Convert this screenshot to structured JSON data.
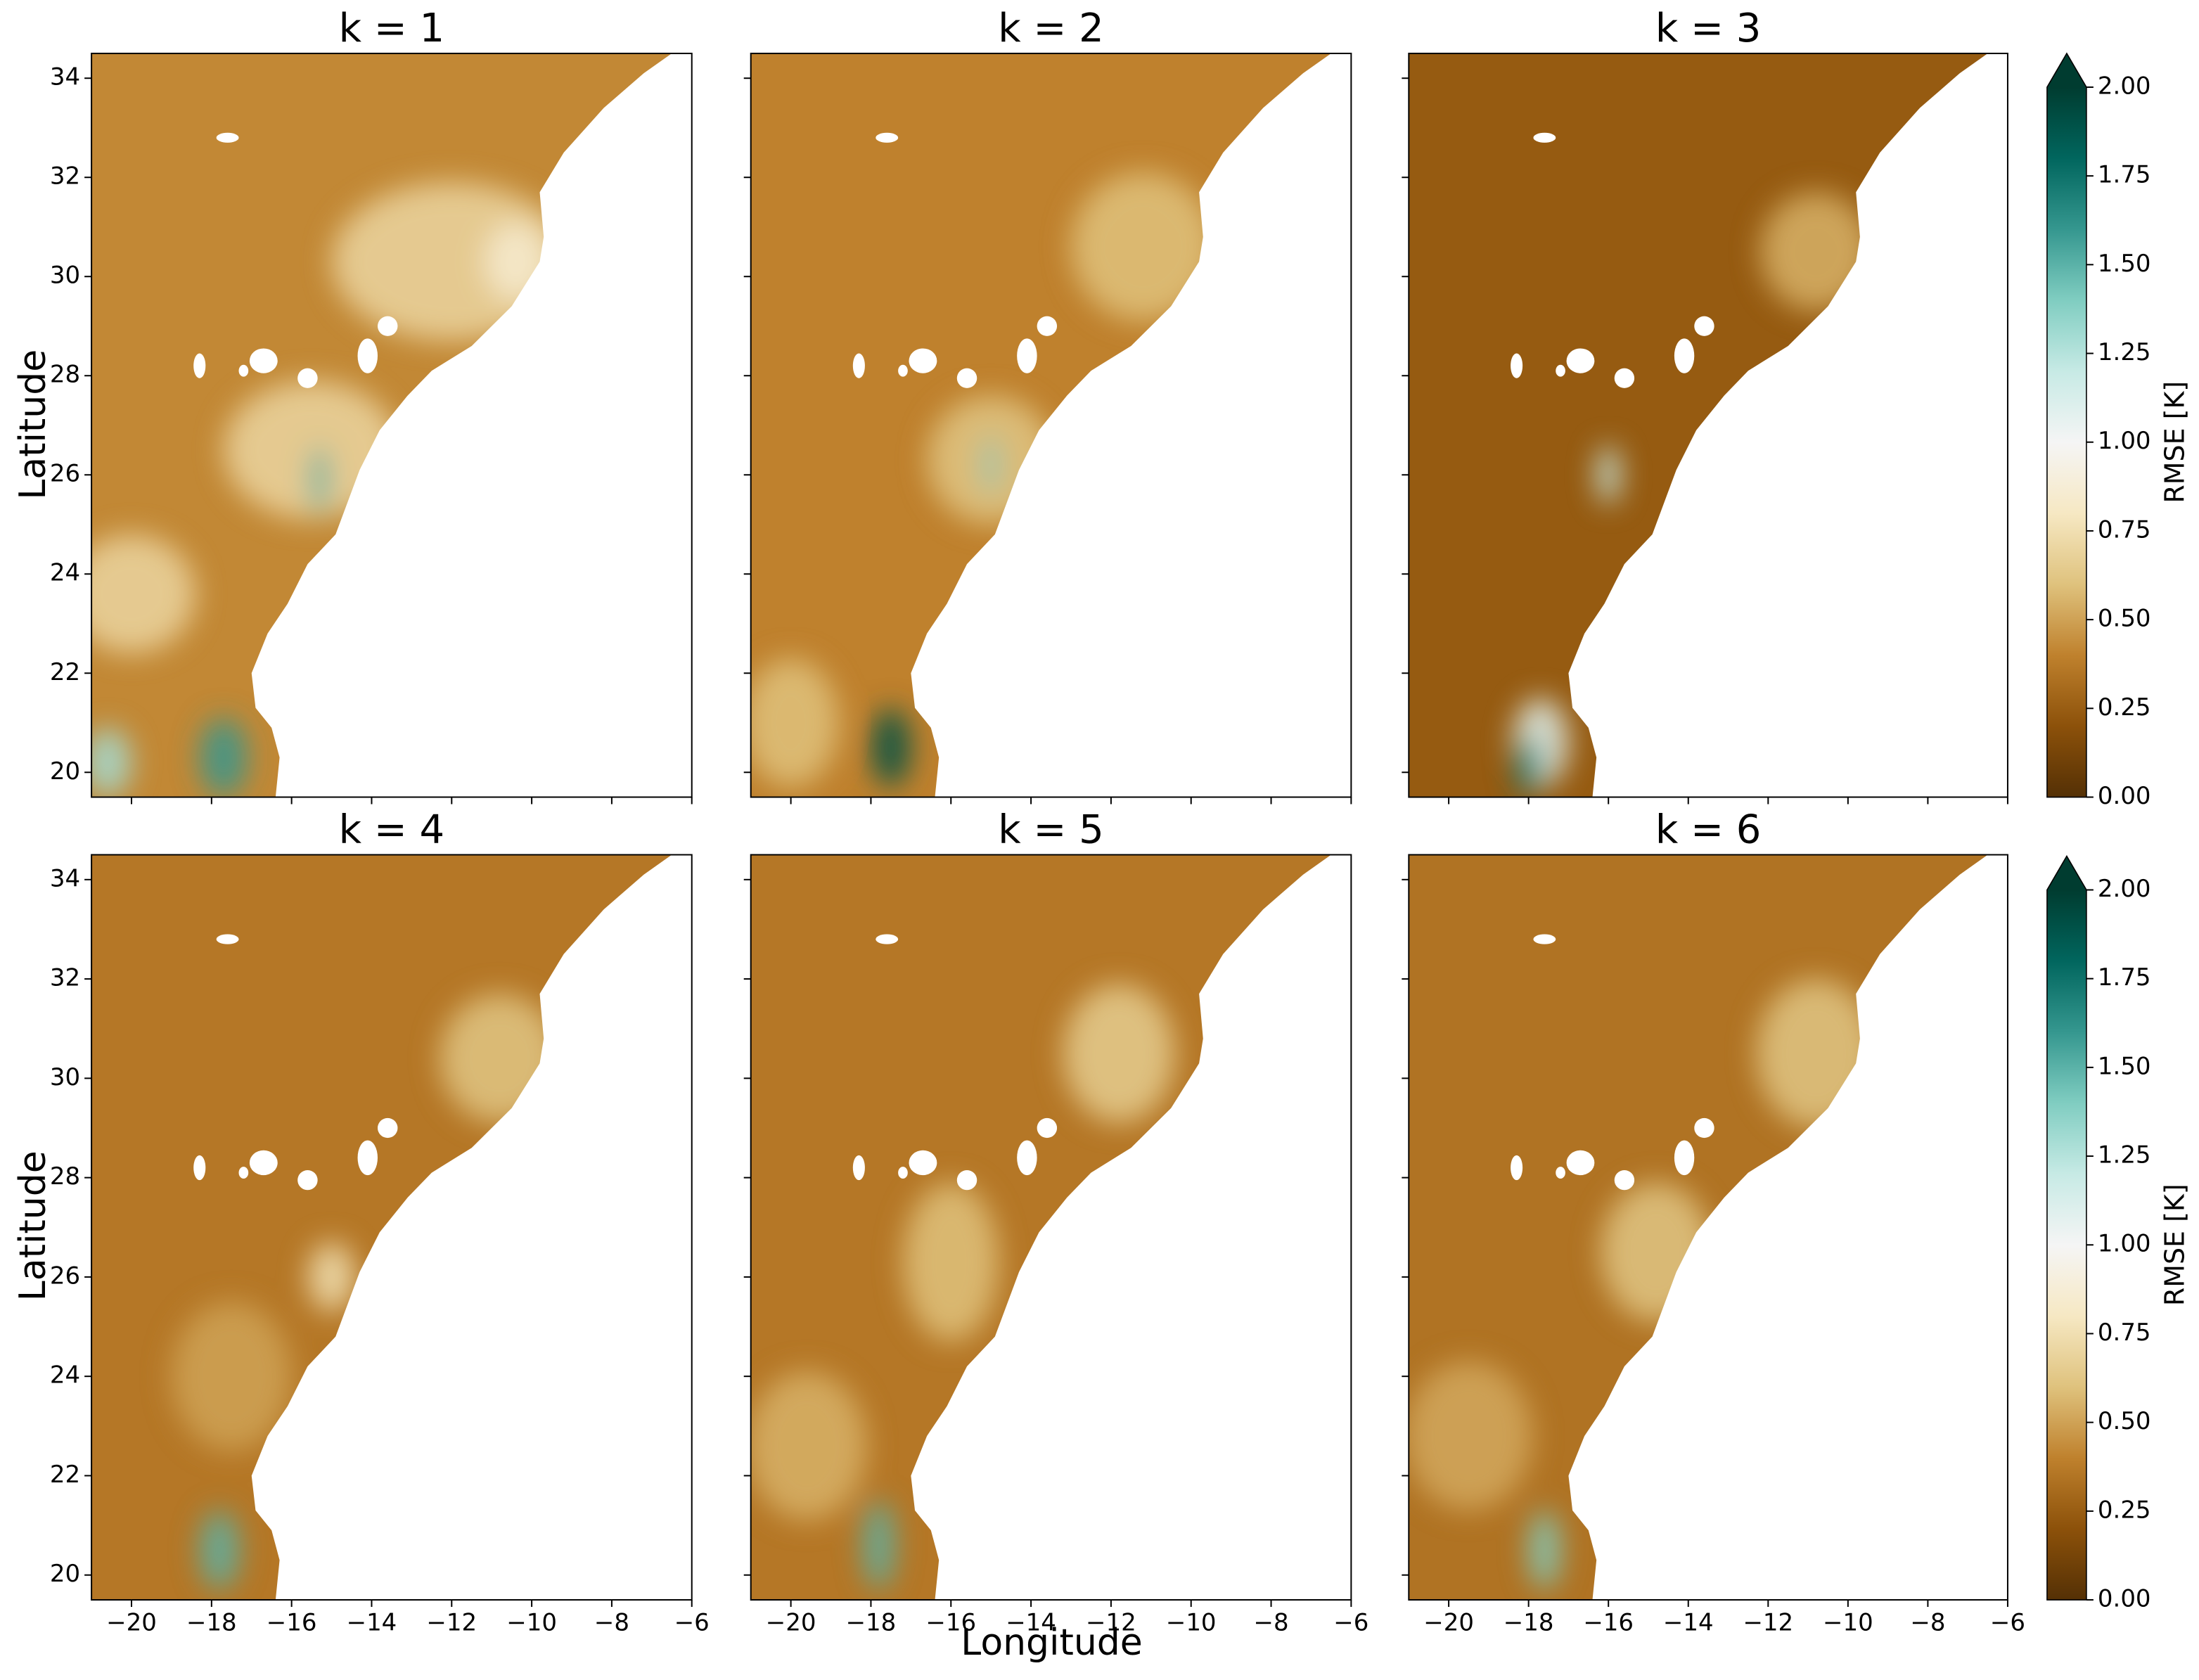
{
  "chart_data": {
    "type": "heatmap",
    "panels": [
      {
        "title": "k = 1"
      },
      {
        "title": "k = 2"
      },
      {
        "title": "k = 3"
      },
      {
        "title": "k = 4"
      },
      {
        "title": "k = 5"
      },
      {
        "title": "k = 6"
      }
    ],
    "x_label": "Longitude",
    "y_label": "Latitude",
    "xlim": [
      -21,
      -6
    ],
    "xticks": [
      {
        "value": -20,
        "label": "−20"
      },
      {
        "value": -18,
        "label": "−18"
      },
      {
        "value": -16,
        "label": "−16"
      },
      {
        "value": -14,
        "label": "−14"
      },
      {
        "value": -12,
        "label": "−12"
      },
      {
        "value": -10,
        "label": "−10"
      },
      {
        "value": -8,
        "label": "−8"
      },
      {
        "value": -6,
        "label": "−6"
      }
    ],
    "ylim": [
      19.5,
      34.5
    ],
    "yticks": [
      20,
      22,
      24,
      26,
      28,
      30,
      32,
      34
    ],
    "colorbar": {
      "label": "RMSE [K]",
      "lim": [
        0,
        2
      ],
      "ticks": [
        {
          "value": 0,
          "label": "0.00"
        },
        {
          "value": 0.25,
          "label": "0.25"
        },
        {
          "value": 0.5,
          "label": "0.50"
        },
        {
          "value": 0.75,
          "label": "0.75"
        },
        {
          "value": 1,
          "label": "1.00"
        },
        {
          "value": 1.25,
          "label": "1.25"
        },
        {
          "value": 1.5,
          "label": "1.50"
        },
        {
          "value": 1.75,
          "label": "1.75"
        },
        {
          "value": 2,
          "label": "2.00"
        }
      ],
      "colors": [
        "#543005",
        "#8c510a",
        "#bf812d",
        "#dfc27d",
        "#f6e8c3",
        "#f5f5f5",
        "#c7eae5",
        "#80cdc1",
        "#35978f",
        "#01665e",
        "#003c30"
      ],
      "extend": "max"
    }
  }
}
